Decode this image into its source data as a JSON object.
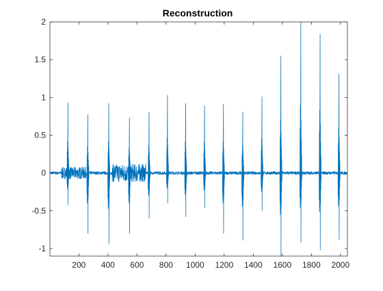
{
  "chart_data": {
    "type": "line",
    "title": "Reconstruction",
    "xlabel": "",
    "ylabel": "",
    "xlim": [
      1,
      2048
    ],
    "ylim": [
      -1.1,
      2
    ],
    "x_ticks": [
      200,
      400,
      600,
      800,
      1000,
      1200,
      1400,
      1600,
      1800,
      2000
    ],
    "y_ticks": [
      -1,
      -0.5,
      0,
      0.5,
      1,
      1.5,
      2
    ],
    "x_tick_labels": [
      "200",
      "400",
      "600",
      "800",
      "1000",
      "1200",
      "1400",
      "1600",
      "1800",
      "2000"
    ],
    "y_tick_labels": [
      "-1",
      "-0.5",
      "0",
      "0.5",
      "1",
      "1.5",
      "2"
    ],
    "grid": false,
    "box": true,
    "series_color": "#0072BD",
    "series": [
      {
        "baseline_noise_amplitude": 0.02,
        "noisy_regions": [
          {
            "x_start": 80,
            "x_end": 250,
            "amplitude": 0.08
          },
          {
            "x_start": 430,
            "x_end": 660,
            "amplitude": 0.12
          }
        ],
        "spikes": [
          {
            "x": 125,
            "peak": 0.93,
            "trough": -0.42
          },
          {
            "x": 262,
            "peak": 0.77,
            "trough": -0.8
          },
          {
            "x": 406,
            "peak": 0.92,
            "trough": -0.94
          },
          {
            "x": 548,
            "peak": 0.73,
            "trough": -0.8
          },
          {
            "x": 683,
            "peak": 0.8,
            "trough": -0.6
          },
          {
            "x": 810,
            "peak": 1.03,
            "trough": -0.4
          },
          {
            "x": 935,
            "peak": 0.92,
            "trough": -0.58
          },
          {
            "x": 1065,
            "peak": 0.89,
            "trough": -0.46
          },
          {
            "x": 1195,
            "peak": 0.91,
            "trough": -0.8
          },
          {
            "x": 1328,
            "peak": 0.81,
            "trough": -0.89
          },
          {
            "x": 1460,
            "peak": 1.01,
            "trough": -0.5
          },
          {
            "x": 1590,
            "peak": 1.55,
            "trough": -1.1
          },
          {
            "x": 1727,
            "peak": 2.0,
            "trough": -0.92
          },
          {
            "x": 1860,
            "peak": 1.84,
            "trough": -1.02
          },
          {
            "x": 1990,
            "peak": 1.31,
            "trough": -0.88
          }
        ]
      }
    ]
  }
}
